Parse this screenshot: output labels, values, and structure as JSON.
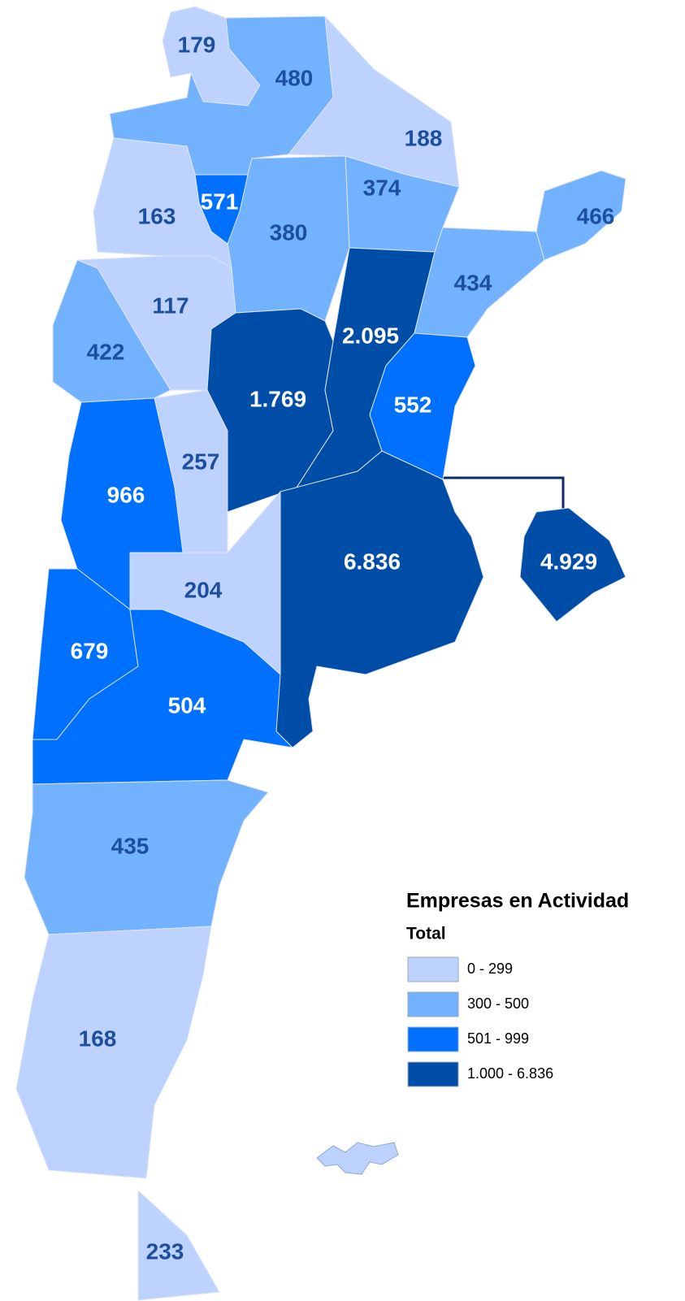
{
  "map": {
    "legend": {
      "title": "Empresas en Actividad",
      "subtitle": "Total",
      "items": [
        {
          "label": "0 - 299",
          "color": "#bed2ff"
        },
        {
          "label": "300 - 500",
          "color": "#73b2ff"
        },
        {
          "label": "501 - 999",
          "color": "#0070ff"
        },
        {
          "label": "1.000 - 6.836",
          "color": "#004da8"
        }
      ]
    },
    "regions": [
      {
        "label": "179",
        "color": "#bed2ff"
      },
      {
        "label": "480",
        "color": "#73b2ff"
      },
      {
        "label": "188",
        "color": "#bed2ff"
      },
      {
        "label": "374",
        "color": "#73b2ff"
      },
      {
        "label": "380",
        "color": "#73b2ff"
      },
      {
        "label": "571",
        "color": "#0070ff"
      },
      {
        "label": "163",
        "color": "#bed2ff"
      },
      {
        "label": "117",
        "color": "#bed2ff"
      },
      {
        "label": "422",
        "color": "#73b2ff"
      },
      {
        "label": "1.769",
        "color": "#004da8"
      },
      {
        "label": "2.095",
        "color": "#004da8"
      },
      {
        "label": "434",
        "color": "#73b2ff"
      },
      {
        "label": "466",
        "color": "#73b2ff"
      },
      {
        "label": "552",
        "color": "#0070ff"
      },
      {
        "label": "257",
        "color": "#bed2ff"
      },
      {
        "label": "966",
        "color": "#0070ff"
      },
      {
        "label": "6.836",
        "color": "#004da8"
      },
      {
        "label": "204",
        "color": "#bed2ff"
      },
      {
        "label": "679",
        "color": "#0070ff"
      },
      {
        "label": "504",
        "color": "#0070ff"
      },
      {
        "label": "435",
        "color": "#73b2ff"
      },
      {
        "label": "168",
        "color": "#bed2ff"
      },
      {
        "label": "233",
        "color": "#bed2ff"
      },
      {
        "label": "4.929",
        "color": "#004da8"
      }
    ]
  }
}
